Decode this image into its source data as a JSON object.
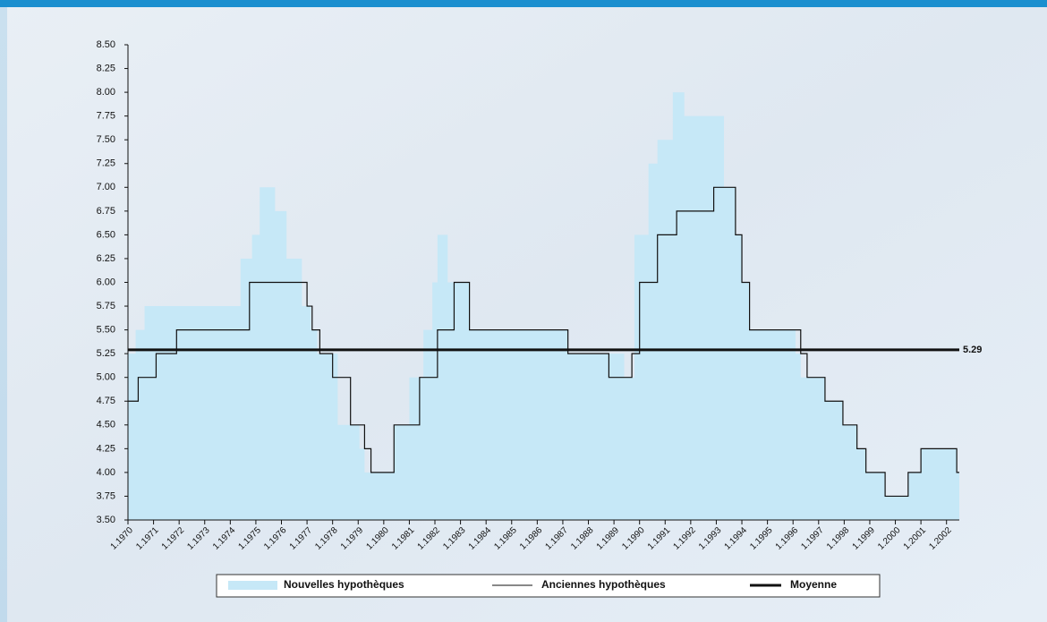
{
  "chart_data": {
    "type": "step",
    "xlim": [
      1970,
      2002.5
    ],
    "xticks": [
      {
        "value": 1970,
        "label": "1.1970"
      },
      {
        "value": 1971,
        "label": "1.1971"
      },
      {
        "value": 1972,
        "label": "1.1972"
      },
      {
        "value": 1973,
        "label": "1.1973"
      },
      {
        "value": 1974,
        "label": "1.1974"
      },
      {
        "value": 1975,
        "label": "1.1975"
      },
      {
        "value": 1976,
        "label": "1.1976"
      },
      {
        "value": 1977,
        "label": "1.1977"
      },
      {
        "value": 1978,
        "label": "1.1978"
      },
      {
        "value": 1979,
        "label": "1.1979"
      },
      {
        "value": 1980,
        "label": "1.1980"
      },
      {
        "value": 1981,
        "label": "1.1981"
      },
      {
        "value": 1982,
        "label": "1.1982"
      },
      {
        "value": 1983,
        "label": "1.1983"
      },
      {
        "value": 1984,
        "label": "1.1984"
      },
      {
        "value": 1985,
        "label": "1.1985"
      },
      {
        "value": 1986,
        "label": "1.1986"
      },
      {
        "value": 1987,
        "label": "1.1987"
      },
      {
        "value": 1988,
        "label": "1.1988"
      },
      {
        "value": 1989,
        "label": "1.1989"
      },
      {
        "value": 1990,
        "label": "1.1990"
      },
      {
        "value": 1991,
        "label": "1.1991"
      },
      {
        "value": 1992,
        "label": "1.1992"
      },
      {
        "value": 1993,
        "label": "1.1993"
      },
      {
        "value": 1994,
        "label": "1.1994"
      },
      {
        "value": 1995,
        "label": "1.1995"
      },
      {
        "value": 1996,
        "label": "1.1996"
      },
      {
        "value": 1997,
        "label": "1.1997"
      },
      {
        "value": 1998,
        "label": "1.1998"
      },
      {
        "value": 1999,
        "label": "1.1999"
      },
      {
        "value": 2000,
        "label": "1.2000"
      },
      {
        "value": 2001,
        "label": "1.2001"
      },
      {
        "value": 2002,
        "label": "1.2002"
      }
    ],
    "ylim": [
      3.5,
      8.5
    ],
    "yticks": [
      {
        "value": 3.5,
        "label": "3.50"
      },
      3.75,
      {
        "value": 4,
        "label": "4.00"
      },
      4.25,
      {
        "value": 4.5,
        "label": "4.50"
      },
      4.75,
      {
        "value": 5,
        "label": "5.00"
      },
      5.25,
      {
        "value": 5.5,
        "label": "5.50"
      },
      5.75,
      {
        "value": 6,
        "label": "6.00"
      },
      6.25,
      {
        "value": 6.5,
        "label": "6.50"
      },
      6.75,
      {
        "value": 7,
        "label": "7.00"
      },
      7.25,
      {
        "value": 7.5,
        "label": "7.50"
      },
      7.75,
      {
        "value": 8,
        "label": "8.00"
      },
      8.25,
      {
        "value": 8.5,
        "label": "8.50"
      }
    ],
    "series": [
      {
        "name": "Nouvelles hypothèques",
        "color": "#c6e8f7",
        "style": "area",
        "x": [
          1970,
          1970.3,
          1970.65,
          1974.4,
          1974.85,
          1975.15,
          1975.75,
          1976.2,
          1976.8,
          1977.15,
          1977.4,
          1978.2,
          1979.05,
          1979.25,
          1980.4,
          1981.0,
          1981.55,
          1981.9,
          1982.1,
          1982.5,
          1983.35,
          1987.2,
          1989.4,
          1989.8,
          1990.35,
          1990.7,
          1991.3,
          1991.75,
          1993.3,
          1993.75,
          1994.0,
          1994.3,
          1996.1,
          1996.3,
          1997.25,
          1997.95,
          1998.5,
          1998.85,
          1999.6,
          2000.5,
          2001.0,
          2002.4
        ],
        "values": [
          5.25,
          5.5,
          5.75,
          6.25,
          6.5,
          7.0,
          6.75,
          6.25,
          5.75,
          5.5,
          5.25,
          4.5,
          4.25,
          4.0,
          4.5,
          5.0,
          5.5,
          6.0,
          6.5,
          6.0,
          5.5,
          5.25,
          5.0,
          6.5,
          7.25,
          7.5,
          8.0,
          7.75,
          7.0,
          6.5,
          6.0,
          5.5,
          5.25,
          5.0,
          4.75,
          4.5,
          4.25,
          4.0,
          3.75,
          4.0,
          4.25,
          4.0
        ]
      },
      {
        "name": "Anciennes hypothèques",
        "color": "#111111",
        "style": "line",
        "x": [
          1970,
          1970.4,
          1971.1,
          1971.9,
          1974.75,
          1977.0,
          1977.2,
          1977.5,
          1978.0,
          1978.7,
          1979.25,
          1979.5,
          1980.4,
          1981.4,
          1982.1,
          1982.75,
          1983.35,
          1987.2,
          1988.8,
          1989.7,
          1990.0,
          1990.7,
          1991.45,
          1992.9,
          1993.75,
          1994.0,
          1994.3,
          1996.3,
          1996.55,
          1997.25,
          1997.95,
          1998.5,
          1998.85,
          1999.6,
          2000.5,
          2001.0,
          2002.4
        ],
        "values": [
          4.75,
          5.0,
          5.25,
          5.5,
          6.0,
          5.75,
          5.5,
          5.25,
          5.0,
          4.5,
          4.25,
          4.0,
          4.5,
          5.0,
          5.5,
          6.0,
          5.5,
          5.25,
          5.0,
          5.25,
          6.0,
          6.5,
          6.75,
          7.0,
          6.5,
          6.0,
          5.5,
          5.25,
          5.0,
          4.75,
          4.5,
          4.25,
          4.0,
          3.75,
          4.0,
          4.25,
          4.0
        ]
      },
      {
        "name": "Moyenne",
        "color": "#111111",
        "style": "mean",
        "values": [
          5.29
        ]
      }
    ]
  }
}
